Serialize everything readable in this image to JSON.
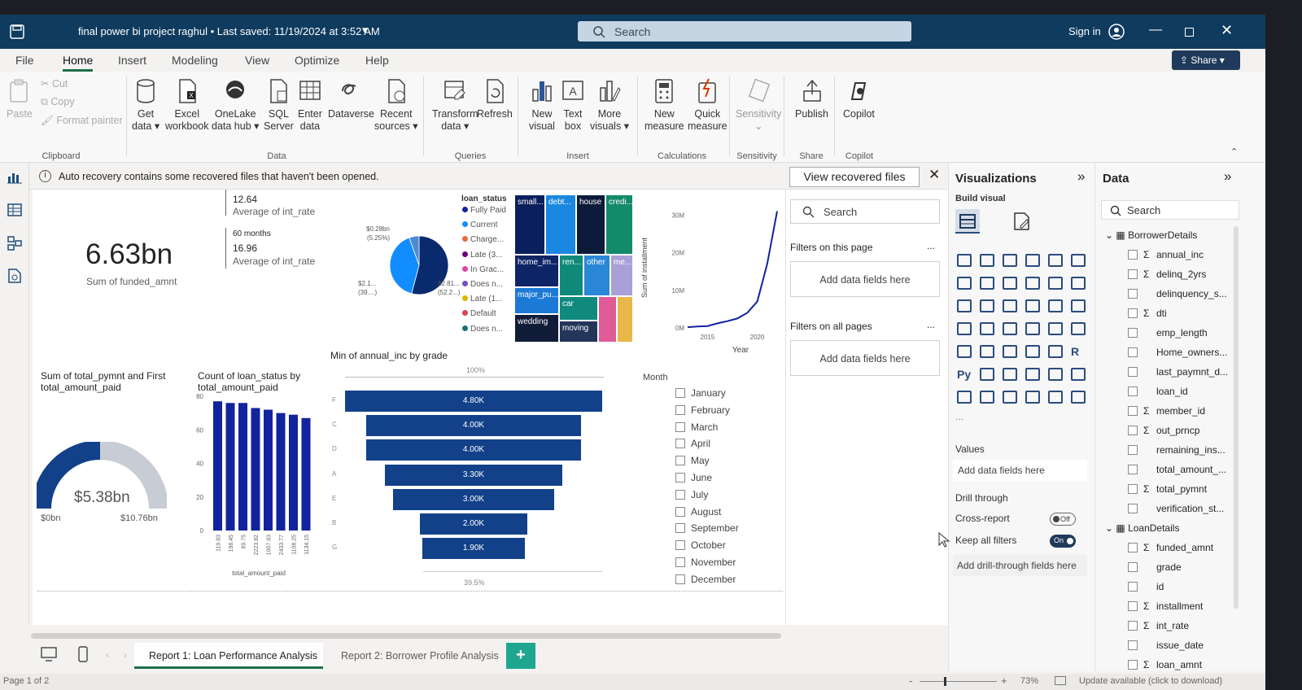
{
  "window": {
    "title": "final power bi project raghul • Last saved: 11/19/2024 at 3:52 AM",
    "search_placeholder": "Search",
    "sign_in": "Sign in"
  },
  "menu": {
    "items": [
      "File",
      "Home",
      "Insert",
      "Modeling",
      "View",
      "Optimize",
      "Help"
    ],
    "share": "Share"
  },
  "ribbon": {
    "clipboard": {
      "paste": "Paste",
      "cut": "Cut",
      "copy": "Copy",
      "format_painter": "Format painter",
      "group": "Clipboard"
    },
    "data": {
      "get_data": [
        "Get",
        "data"
      ],
      "excel": [
        "Excel",
        "workbook"
      ],
      "onelake": [
        "OneLake",
        "data hub"
      ],
      "sql": [
        "SQL",
        "Server"
      ],
      "enter": [
        "Enter",
        "data"
      ],
      "dataverse": [
        "Dataverse",
        ""
      ],
      "recent": [
        "Recent",
        "sources"
      ],
      "group": "Data"
    },
    "queries": {
      "transform": [
        "Transform",
        "data"
      ],
      "refresh": [
        "Refresh",
        ""
      ],
      "group": "Queries"
    },
    "insert": {
      "new_visual": [
        "New",
        "visual"
      ],
      "text_box": [
        "Text",
        "box"
      ],
      "more_visuals": [
        "More",
        "visuals"
      ],
      "group": "Insert"
    },
    "calculations": {
      "new_measure": [
        "New",
        "measure"
      ],
      "quick_measure": [
        "Quick",
        "measure"
      ],
      "group": "Calculations"
    },
    "sensitivity": {
      "label": "Sensitivity",
      "group": "Sensitivity"
    },
    "share": {
      "publish": "Publish",
      "group": "Share"
    },
    "copilot": {
      "label": "Copilot",
      "group": "Copilot"
    }
  },
  "notification": {
    "text": "Auto recovery contains some recovered files that haven't been opened.",
    "button": "View recovered files"
  },
  "report": {
    "card": {
      "value": "6.63bn",
      "label": "Sum of funded_amnt"
    },
    "multirow": [
      {
        "value": "12.64",
        "label": "Average of int_rate",
        "head": ""
      },
      {
        "value": "16.96",
        "label": "Average of int_rate",
        "head": "60 months"
      }
    ],
    "pie_labels": {
      "tl": "$0.28bn",
      "tl2": "(5.25%)",
      "bl": "$2.1...",
      "bl2": "(39....)",
      "br": "$2.81...",
      "br2": "(52.2...)"
    },
    "legend": {
      "title": "loan_status",
      "items": [
        {
          "label": "Fully Paid",
          "color": "#12239e"
        },
        {
          "label": "Current",
          "color": "#118dff"
        },
        {
          "label": "Charge...",
          "color": "#e66c37"
        },
        {
          "label": "Late (3...",
          "color": "#6b007b"
        },
        {
          "label": "In Grac...",
          "color": "#e044a7"
        },
        {
          "label": "Does n...",
          "color": "#744ec2"
        },
        {
          "label": "Late (1...",
          "color": "#d9b300"
        },
        {
          "label": "Default",
          "color": "#d64550"
        },
        {
          "label": "Does n...",
          "color": "#197278"
        }
      ]
    },
    "treemap": [
      {
        "label": "small...",
        "color": "#0b1f5c"
      },
      {
        "label": "debt...",
        "color": "#1a88e0"
      },
      {
        "label": "house",
        "color": "#0c1a3a"
      },
      {
        "label": "credi...",
        "color": "#138a6a"
      },
      {
        "label": "home_im...",
        "color": "#0d2466"
      },
      {
        "label": "ren...",
        "color": "#0f8a7a"
      },
      {
        "label": "other",
        "color": "#2a86d6"
      },
      {
        "label": "me...",
        "color": "#a9a0d8"
      },
      {
        "label": "major_pu...",
        "color": "#1c7ad6"
      },
      {
        "label": "car",
        "color": "#118a7e"
      },
      {
        "label": "wedding",
        "color": "#101c38"
      },
      {
        "label": "moving",
        "color": "#24355a"
      },
      {
        "label": "",
        "color": "#e05a97"
      },
      {
        "label": "",
        "color": "#e8b84a"
      }
    ],
    "gauge": {
      "title": "Sum of total_pymnt and First total_amount_paid",
      "value": "$5.38bn",
      "min": "$0bn",
      "max": "$10.76bn",
      "fill": 0.5
    },
    "funnel_title": "Min of annual_inc by grade",
    "funnel_top": "100%",
    "funnel_bottom": "39.5%",
    "bar_title": "Count of loan_status by total_amount_paid",
    "bar_xlabel": "total_amount_paid",
    "month": {
      "title": "Month",
      "items": [
        "January",
        "February",
        "March",
        "April",
        "May",
        "June",
        "July",
        "August",
        "September",
        "October",
        "November",
        "December"
      ]
    }
  },
  "chart_data": [
    {
      "type": "pie",
      "title": "loan_status",
      "labels": [
        "Fully Paid",
        "Current",
        "Charged Off"
      ],
      "values": [
        52.2,
        39.0,
        5.25
      ]
    },
    {
      "type": "line",
      "title": "",
      "xlabel": "Year",
      "ylabel": "Sum of installment",
      "x": [
        2013,
        2014,
        2015,
        2016,
        2017,
        2018,
        2019,
        2020,
        2021,
        2022
      ],
      "y": [
        0.2,
        0.4,
        0.5,
        1.2,
        1.8,
        2.5,
        4.0,
        7.0,
        17.0,
        31.0
      ],
      "ylim": [
        0,
        32
      ],
      "yticks": [
        "0M",
        "10M",
        "20M",
        "30M"
      ],
      "xticks": [
        "2015",
        "2020"
      ]
    },
    {
      "type": "bar",
      "title": "Count of loan_status by total_amount_paid",
      "categories": [
        "119.83",
        "198.45",
        "89.75",
        "2223.82",
        "1007.93",
        "2433.77",
        "1108.25",
        "1134.15"
      ],
      "values": [
        77,
        76,
        76,
        73,
        72,
        70,
        69,
        67
      ],
      "ylim": [
        0,
        80
      ],
      "yticks": [
        "0",
        "20",
        "40",
        "60",
        "80"
      ]
    },
    {
      "type": "bar",
      "orientation": "horizontal-funnel",
      "title": "Min of annual_inc by grade",
      "categories": [
        "F",
        "C",
        "D",
        "A",
        "E",
        "B",
        "G"
      ],
      "values": [
        4.8,
        4.0,
        4.0,
        3.3,
        3.0,
        2.0,
        1.9
      ],
      "labels": [
        "4.80K",
        "4.00K",
        "4.00K",
        "3.30K",
        "3.00K",
        "2.00K",
        "1.90K"
      ]
    }
  ],
  "filters": {
    "search": "Search",
    "on_page": "Filters on this page",
    "on_all": "Filters on all pages",
    "add": "Add data fields here",
    "dots": "..."
  },
  "viz": {
    "title": "Visualizations",
    "build": "Build visual",
    "values": "Values",
    "values_add": "Add data fields here",
    "drill": "Drill through",
    "cross": "Cross-report",
    "cross_state": "Off",
    "keep": "Keep all filters",
    "keep_state": "On",
    "drill_add": "Add drill-through fields here",
    "more": "..."
  },
  "data": {
    "title": "Data",
    "search": "Search",
    "tables": [
      {
        "name": "BorrowerDetails",
        "fields": [
          {
            "name": "annual_inc",
            "sigma": true
          },
          {
            "name": "delinq_2yrs",
            "sigma": true
          },
          {
            "name": "delinquency_s...",
            "sigma": false
          },
          {
            "name": "dti",
            "sigma": true
          },
          {
            "name": "emp_length",
            "sigma": false
          },
          {
            "name": "Home_owners...",
            "sigma": false
          },
          {
            "name": "last_paymnt_d...",
            "sigma": false
          },
          {
            "name": "loan_id",
            "sigma": false
          },
          {
            "name": "member_id",
            "sigma": true
          },
          {
            "name": "out_prncp",
            "sigma": true
          },
          {
            "name": "remaining_ins...",
            "sigma": false
          },
          {
            "name": "total_amount_...",
            "sigma": false
          },
          {
            "name": "total_pymnt",
            "sigma": true
          },
          {
            "name": "verification_st...",
            "sigma": false
          }
        ]
      },
      {
        "name": "LoanDetails",
        "fields": [
          {
            "name": "funded_amnt",
            "sigma": true
          },
          {
            "name": "grade",
            "sigma": false
          },
          {
            "name": "id",
            "sigma": false
          },
          {
            "name": "installment",
            "sigma": true
          },
          {
            "name": "int_rate",
            "sigma": true
          },
          {
            "name": "issue_date",
            "sigma": false
          },
          {
            "name": "loan_amnt",
            "sigma": true
          }
        ]
      }
    ]
  },
  "tabs": {
    "items": [
      "Report 1: Loan Performance Analysis",
      "Report 2: Borrower Profile Analysis"
    ],
    "add": "+"
  },
  "status": {
    "page": "Page 1 of 2",
    "zoom": "73%",
    "update": "Update available (click to download)"
  },
  "colors": {
    "titlebar": "#0f3b5f",
    "accent": "#1e6e4a",
    "funnel": "#12418a",
    "bar": "#12239e"
  }
}
